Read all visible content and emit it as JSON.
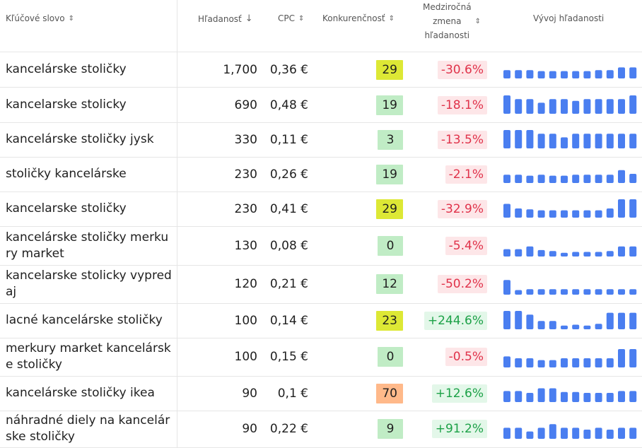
{
  "header": {
    "keyword": "Kľúčové slovo",
    "volume": "Hľadanosť",
    "cpc": "CPC",
    "competition": "Konkurenčnosť",
    "yoy_line1": "Medziročná",
    "yoy_line2": "zmena",
    "yoy_line3": "hľadanosti",
    "trend": "Vývoj hľadanosti"
  },
  "colors": {
    "kd_low": "#c0ecc5",
    "kd_mid": "#dde835",
    "kd_high": "#ffb98a",
    "bar": "#4a7ef0"
  },
  "rows": [
    {
      "keyword": "kancelárske stoličky",
      "volume": "1,700",
      "cpc": "0,36 €",
      "kd": "29",
      "kd_level": "mid",
      "yoy": "-30.6%",
      "yoy_sign": "neg",
      "trend": [
        0.45,
        0.45,
        0.45,
        0.4,
        0.4,
        0.4,
        0.4,
        0.4,
        0.45,
        0.45,
        0.6,
        0.6
      ]
    },
    {
      "keyword": "kancelarske stolicky",
      "volume": "690",
      "cpc": "0,48 €",
      "kd": "19",
      "kd_level": "low",
      "yoy": "-18.1%",
      "yoy_sign": "neg",
      "trend": [
        1.0,
        0.8,
        0.8,
        0.6,
        0.8,
        0.8,
        0.7,
        0.8,
        0.8,
        0.8,
        0.8,
        1.0
      ]
    },
    {
      "keyword": "kancelárske stoličky jysk",
      "volume": "330",
      "cpc": "0,11 €",
      "kd": "3",
      "kd_level": "low",
      "yoy": "-13.5%",
      "yoy_sign": "neg",
      "trend": [
        1.0,
        1.0,
        1.0,
        0.8,
        0.8,
        0.6,
        0.8,
        0.8,
        0.8,
        0.8,
        0.8,
        0.8
      ]
    },
    {
      "keyword": "stoličky kancelárske",
      "volume": "230",
      "cpc": "0,26 €",
      "kd": "19",
      "kd_level": "low",
      "yoy": "-2.1%",
      "yoy_sign": "neg",
      "trend": [
        0.45,
        0.45,
        0.4,
        0.45,
        0.4,
        0.4,
        0.45,
        0.45,
        0.45,
        0.45,
        0.7,
        0.5
      ]
    },
    {
      "keyword": "kancelarske stoličky",
      "volume": "230",
      "cpc": "0,41 €",
      "kd": "29",
      "kd_level": "mid",
      "yoy": "-32.9%",
      "yoy_sign": "neg",
      "trend": [
        0.75,
        0.5,
        0.45,
        0.4,
        0.4,
        0.4,
        0.4,
        0.4,
        0.4,
        0.5,
        1.0,
        1.0
      ]
    },
    {
      "keyword": "kancelárske stoličky merkury market",
      "volume": "130",
      "cpc": "0,08 €",
      "kd": "0",
      "kd_level": "low",
      "yoy": "-5.4%",
      "yoy_sign": "neg",
      "trend": [
        0.4,
        0.4,
        0.55,
        0.35,
        0.3,
        0.2,
        0.25,
        0.25,
        0.25,
        0.3,
        0.55,
        0.55
      ]
    },
    {
      "keyword": "kancelarske stolicky vypredaj",
      "volume": "120",
      "cpc": "0,21 €",
      "kd": "12",
      "kd_level": "low",
      "yoy": "-50.2%",
      "yoy_sign": "neg",
      "trend": [
        0.8,
        0.25,
        0.3,
        0.3,
        0.3,
        0.3,
        0.3,
        0.3,
        0.3,
        0.3,
        0.3,
        0.3
      ]
    },
    {
      "keyword": "lacné kancelárske stoličky",
      "volume": "100",
      "cpc": "0,14 €",
      "kd": "23",
      "kd_level": "mid",
      "yoy": "+244.6%",
      "yoy_sign": "pos",
      "trend": [
        1.0,
        1.0,
        0.8,
        0.45,
        0.45,
        0.2,
        0.25,
        0.2,
        0.3,
        0.9,
        0.9,
        0.9
      ]
    },
    {
      "keyword": "merkury market kancelárske stoličky",
      "volume": "100",
      "cpc": "0,15 €",
      "kd": "0",
      "kd_level": "low",
      "yoy": "-0.5%",
      "yoy_sign": "neg",
      "trend": [
        0.6,
        0.5,
        0.5,
        0.4,
        0.4,
        0.5,
        0.5,
        0.5,
        0.5,
        0.5,
        1.0,
        1.0
      ]
    },
    {
      "keyword": "kancelárske stoličky ikea",
      "volume": "90",
      "cpc": "0,1 €",
      "kd": "70",
      "kd_level": "high",
      "yoy": "+12.6%",
      "yoy_sign": "pos",
      "trend": [
        0.6,
        0.6,
        0.5,
        0.75,
        0.75,
        0.55,
        0.55,
        0.5,
        0.5,
        0.5,
        0.6,
        0.6
      ]
    },
    {
      "keyword": "náhradné diely na kancelárske stoličky",
      "volume": "90",
      "cpc": "0,22 €",
      "kd": "9",
      "kd_level": "low",
      "yoy": "+91.2%",
      "yoy_sign": "pos",
      "trend": [
        0.6,
        0.6,
        0.4,
        0.6,
        0.8,
        0.6,
        0.6,
        0.5,
        0.6,
        0.5,
        0.6,
        0.6
      ]
    }
  ]
}
